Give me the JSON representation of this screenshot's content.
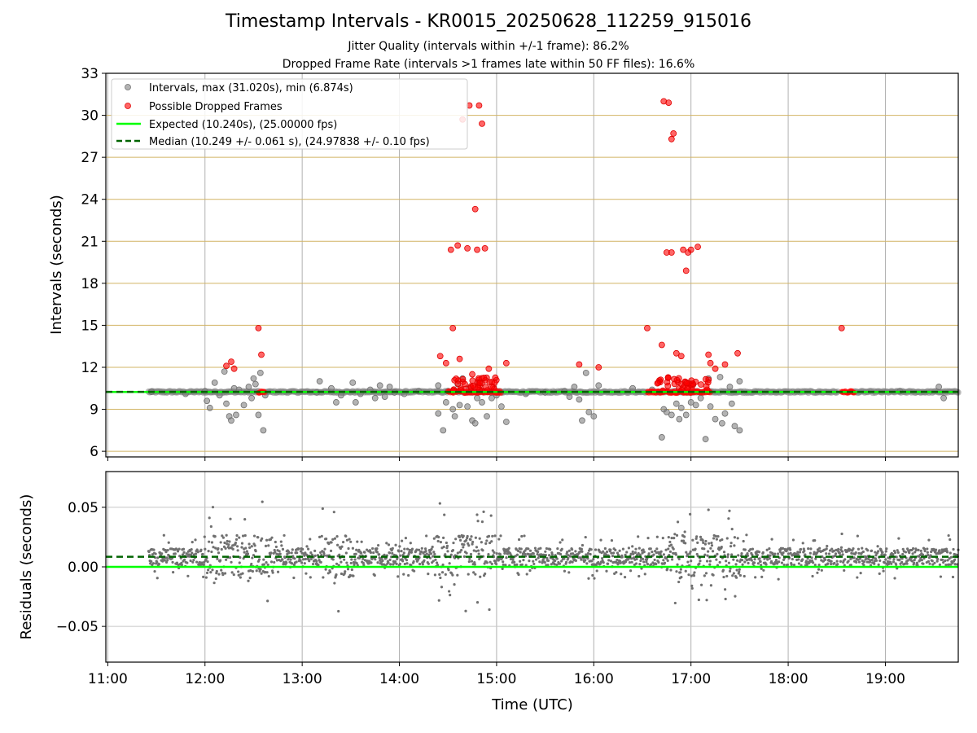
{
  "chart_data": {
    "type": "scatter",
    "title": "Timestamp Intervals - KR0015_20250628_112259_915016",
    "subtitles": [
      "Jitter Quality (intervals within +/-1 frame): 86.2%",
      "Dropped Frame Rate (intervals >1 frames late within 50 FF files): 16.6%"
    ],
    "xlabel": "Time (UTC)",
    "x_tick_labels": [
      "11:00",
      "12:00",
      "13:00",
      "14:00",
      "15:00",
      "16:00",
      "17:00",
      "18:00",
      "19:00"
    ],
    "x_tick_values": [
      11,
      12,
      13,
      14,
      15,
      16,
      17,
      18,
      19
    ],
    "xlim": [
      10.98,
      19.75
    ],
    "top_panel": {
      "ylabel": "Intervals (seconds)",
      "ylim": [
        5.6,
        33
      ],
      "y_ticks": [
        6,
        9,
        12,
        15,
        18,
        21,
        24,
        27,
        30,
        33
      ],
      "grid": true,
      "legend_position": "upper-left",
      "series": [
        {
          "name": "Intervals, max (31.020s), min (6.874s)",
          "color": "#808080",
          "points": [
            [
              11.45,
              10.25
            ],
            [
              11.8,
              10.1
            ],
            [
              12.0,
              10.3
            ],
            [
              12.02,
              9.6
            ],
            [
              12.05,
              9.1
            ],
            [
              12.1,
              10.9
            ],
            [
              12.15,
              10.0
            ],
            [
              12.2,
              11.7
            ],
            [
              12.22,
              9.4
            ],
            [
              12.25,
              8.5
            ],
            [
              12.27,
              8.2
            ],
            [
              12.3,
              10.5
            ],
            [
              12.32,
              8.6
            ],
            [
              12.35,
              10.4
            ],
            [
              12.4,
              9.3
            ],
            [
              12.45,
              10.6
            ],
            [
              12.48,
              9.8
            ],
            [
              12.5,
              11.2
            ],
            [
              12.52,
              10.8
            ],
            [
              12.55,
              8.6
            ],
            [
              12.57,
              11.6
            ],
            [
              12.6,
              7.5
            ],
            [
              12.62,
              10.0
            ],
            [
              13.15,
              10.2
            ],
            [
              13.18,
              11.0
            ],
            [
              13.3,
              10.5
            ],
            [
              13.35,
              9.5
            ],
            [
              13.4,
              10.0
            ],
            [
              13.52,
              10.9
            ],
            [
              13.55,
              9.5
            ],
            [
              13.6,
              10.1
            ],
            [
              13.7,
              10.4
            ],
            [
              13.75,
              9.8
            ],
            [
              13.8,
              10.7
            ],
            [
              13.85,
              9.9
            ],
            [
              13.9,
              10.6
            ],
            [
              13.95,
              10.2
            ],
            [
              14.05,
              10.1
            ],
            [
              14.2,
              10.3
            ],
            [
              14.4,
              10.7
            ],
            [
              14.4,
              8.7
            ],
            [
              14.45,
              7.5
            ],
            [
              14.48,
              9.5
            ],
            [
              14.5,
              10.3
            ],
            [
              14.55,
              9.0
            ],
            [
              14.57,
              8.5
            ],
            [
              14.6,
              10.8
            ],
            [
              14.62,
              9.3
            ],
            [
              14.65,
              11.2
            ],
            [
              14.7,
              9.2
            ],
            [
              14.72,
              10.5
            ],
            [
              14.75,
              8.2
            ],
            [
              14.78,
              8.0
            ],
            [
              14.8,
              9.8
            ],
            [
              14.82,
              10.9
            ],
            [
              14.85,
              9.5
            ],
            [
              14.9,
              8.5
            ],
            [
              14.95,
              9.8
            ],
            [
              15.0,
              10.0
            ],
            [
              15.05,
              9.2
            ],
            [
              15.1,
              8.1
            ],
            [
              15.3,
              10.1
            ],
            [
              15.5,
              10.2
            ],
            [
              15.7,
              10.3
            ],
            [
              15.75,
              9.9
            ],
            [
              15.8,
              10.6
            ],
            [
              15.85,
              9.7
            ],
            [
              15.88,
              8.2
            ],
            [
              15.92,
              11.6
            ],
            [
              15.95,
              8.8
            ],
            [
              16.0,
              8.5
            ],
            [
              16.05,
              10.7
            ],
            [
              16.4,
              10.5
            ],
            [
              16.6,
              10.4
            ],
            [
              16.7,
              7.0
            ],
            [
              16.72,
              9.0
            ],
            [
              16.75,
              8.8
            ],
            [
              16.8,
              8.6
            ],
            [
              16.85,
              9.4
            ],
            [
              16.88,
              8.3
            ],
            [
              16.9,
              9.1
            ],
            [
              16.95,
              8.6
            ],
            [
              17.0,
              9.5
            ],
            [
              17.02,
              10.8
            ],
            [
              17.05,
              9.3
            ],
            [
              17.1,
              9.8
            ],
            [
              17.15,
              6.87
            ],
            [
              17.18,
              11.2
            ],
            [
              17.2,
              9.2
            ],
            [
              17.25,
              8.3
            ],
            [
              17.3,
              11.3
            ],
            [
              17.32,
              8.0
            ],
            [
              17.35,
              8.7
            ],
            [
              17.4,
              10.6
            ],
            [
              17.42,
              9.4
            ],
            [
              17.45,
              7.8
            ],
            [
              17.5,
              7.5
            ],
            [
              17.5,
              11.0
            ],
            [
              19.15,
              10.3
            ],
            [
              19.55,
              10.6
            ],
            [
              19.6,
              9.8
            ]
          ]
        },
        {
          "name": "Possible Dropped Frames",
          "color": "#ff0000",
          "points": [
            [
              12.22,
              12.1
            ],
            [
              12.27,
              12.4
            ],
            [
              12.3,
              11.9
            ],
            [
              12.55,
              14.8
            ],
            [
              12.58,
              12.9
            ],
            [
              14.42,
              12.8
            ],
            [
              14.48,
              12.3
            ],
            [
              14.53,
              20.4
            ],
            [
              14.55,
              14.8
            ],
            [
              14.6,
              20.7
            ],
            [
              14.62,
              12.6
            ],
            [
              14.65,
              29.7
            ],
            [
              14.7,
              20.5
            ],
            [
              14.72,
              30.7
            ],
            [
              14.75,
              11.5
            ],
            [
              14.78,
              23.3
            ],
            [
              14.8,
              20.4
            ],
            [
              14.82,
              30.7
            ],
            [
              14.85,
              29.4
            ],
            [
              14.88,
              20.5
            ],
            [
              14.92,
              11.9
            ],
            [
              14.98,
              10.9
            ],
            [
              15.1,
              12.3
            ],
            [
              15.85,
              12.2
            ],
            [
              16.05,
              12.0
            ],
            [
              16.55,
              14.8
            ],
            [
              16.7,
              13.6
            ],
            [
              16.72,
              31.0
            ],
            [
              16.75,
              20.2
            ],
            [
              16.77,
              30.9
            ],
            [
              16.8,
              20.2
            ],
            [
              16.8,
              28.3
            ],
            [
              16.82,
              28.7
            ],
            [
              16.85,
              13.0
            ],
            [
              16.9,
              12.8
            ],
            [
              16.92,
              20.4
            ],
            [
              16.95,
              18.9
            ],
            [
              16.97,
              20.2
            ],
            [
              17.0,
              20.4
            ],
            [
              17.07,
              20.6
            ],
            [
              17.18,
              12.9
            ],
            [
              17.2,
              12.3
            ],
            [
              17.25,
              11.9
            ],
            [
              17.35,
              12.2
            ],
            [
              17.48,
              13.0
            ],
            [
              18.55,
              14.8
            ]
          ]
        }
      ],
      "expected_line": {
        "name": "Expected (10.240s), (25.00000 fps)",
        "y": 10.24,
        "color": "#00ff00"
      },
      "median_line": {
        "name": "Median (10.249 +/- 0.061 s), (24.97838 +/- 0.10 fps)",
        "y": 10.249,
        "color": "#006400",
        "style": "dashed"
      }
    },
    "bottom_panel": {
      "ylabel": "Residuals (seconds)",
      "ylim": [
        -0.08,
        0.08
      ],
      "y_ticks": [
        0.05,
        0.0,
        -0.05
      ],
      "y_tick_labels": [
        "0.05",
        "0.00",
        "−0.05"
      ],
      "grid": true,
      "color": "#808080",
      "expected_line_y": 0.0,
      "median_line_y": 0.0085
    }
  }
}
